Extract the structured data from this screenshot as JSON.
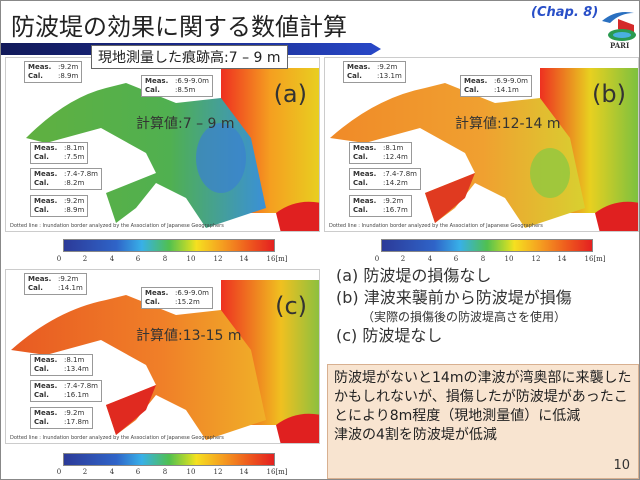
{
  "header": {
    "title": "防波堤の効果に関する数値計算",
    "chapter": "(Chap. 8)",
    "logo_text": "PARI"
  },
  "survey_label": "現地測量した痕跡高:7 – 9 m",
  "colors": {
    "title_bar": "#1a2a8a",
    "summary_bg": "#f8e4d0"
  },
  "panels": [
    {
      "id": "(a)",
      "calc": "計算値:7 – 9 m",
      "labels": [
        {
          "meas": ":9.2m",
          "cal": ":8.9m"
        },
        {
          "meas": ":6.9-9.0m",
          "cal": ":8.5m"
        },
        {
          "meas": ":8.1m",
          "cal": ":7.5m"
        },
        {
          "meas": ":7.4-7.8m",
          "cal": ":8.2m"
        },
        {
          "meas": ":9.2m",
          "cal": ":8.9m"
        }
      ]
    },
    {
      "id": "(b)",
      "calc": "計算値:12-14 m",
      "labels": [
        {
          "meas": ":9.2m",
          "cal": ":13.1m"
        },
        {
          "meas": ":6.9-9.0m",
          "cal": ":14.1m"
        },
        {
          "meas": ":8.1m",
          "cal": ":12.4m"
        },
        {
          "meas": ":7.4-7.8m",
          "cal": ":14.2m"
        },
        {
          "meas": ":9.2m",
          "cal": ":16.7m"
        }
      ]
    },
    {
      "id": "(c)",
      "calc": "計算値:13-15 m",
      "labels": [
        {
          "meas": ":9.2m",
          "cal": ":14.1m"
        },
        {
          "meas": ":6.9-9.0m",
          "cal": ":15.2m"
        },
        {
          "meas": ":8.1m",
          "cal": ":13.4m"
        },
        {
          "meas": ":7.4-7.8m",
          "cal": ":16.1m"
        },
        {
          "meas": ":9.2m",
          "cal": ":17.8m"
        }
      ]
    }
  ],
  "label_keys": {
    "meas": "Meas.",
    "cal": "Cal."
  },
  "note": "Dotted line : Inundation border analyzed by the Association of Japanese Geographers",
  "colorbar": {
    "ticks": [
      "0",
      "2",
      "4",
      "6",
      "8",
      "10",
      "12",
      "14",
      "16[m]"
    ],
    "min": 0,
    "max": 16
  },
  "cases": {
    "a": "(a) 防波堤の損傷なし",
    "b": "(b) 津波来襲前から防波堤が損傷",
    "b_sub": "（実際の損傷後の防波堤高さを使用）",
    "c": "(c) 防波堤なし"
  },
  "summary": {
    "line1": "防波堤がないと14mの津波が湾奥部に来襲したかもしれないが、損傷したが防波堤があったことにより8m程度（現地測量値）に低減",
    "line2": "津波の4割を防波堤が低減"
  },
  "page_number": "10"
}
